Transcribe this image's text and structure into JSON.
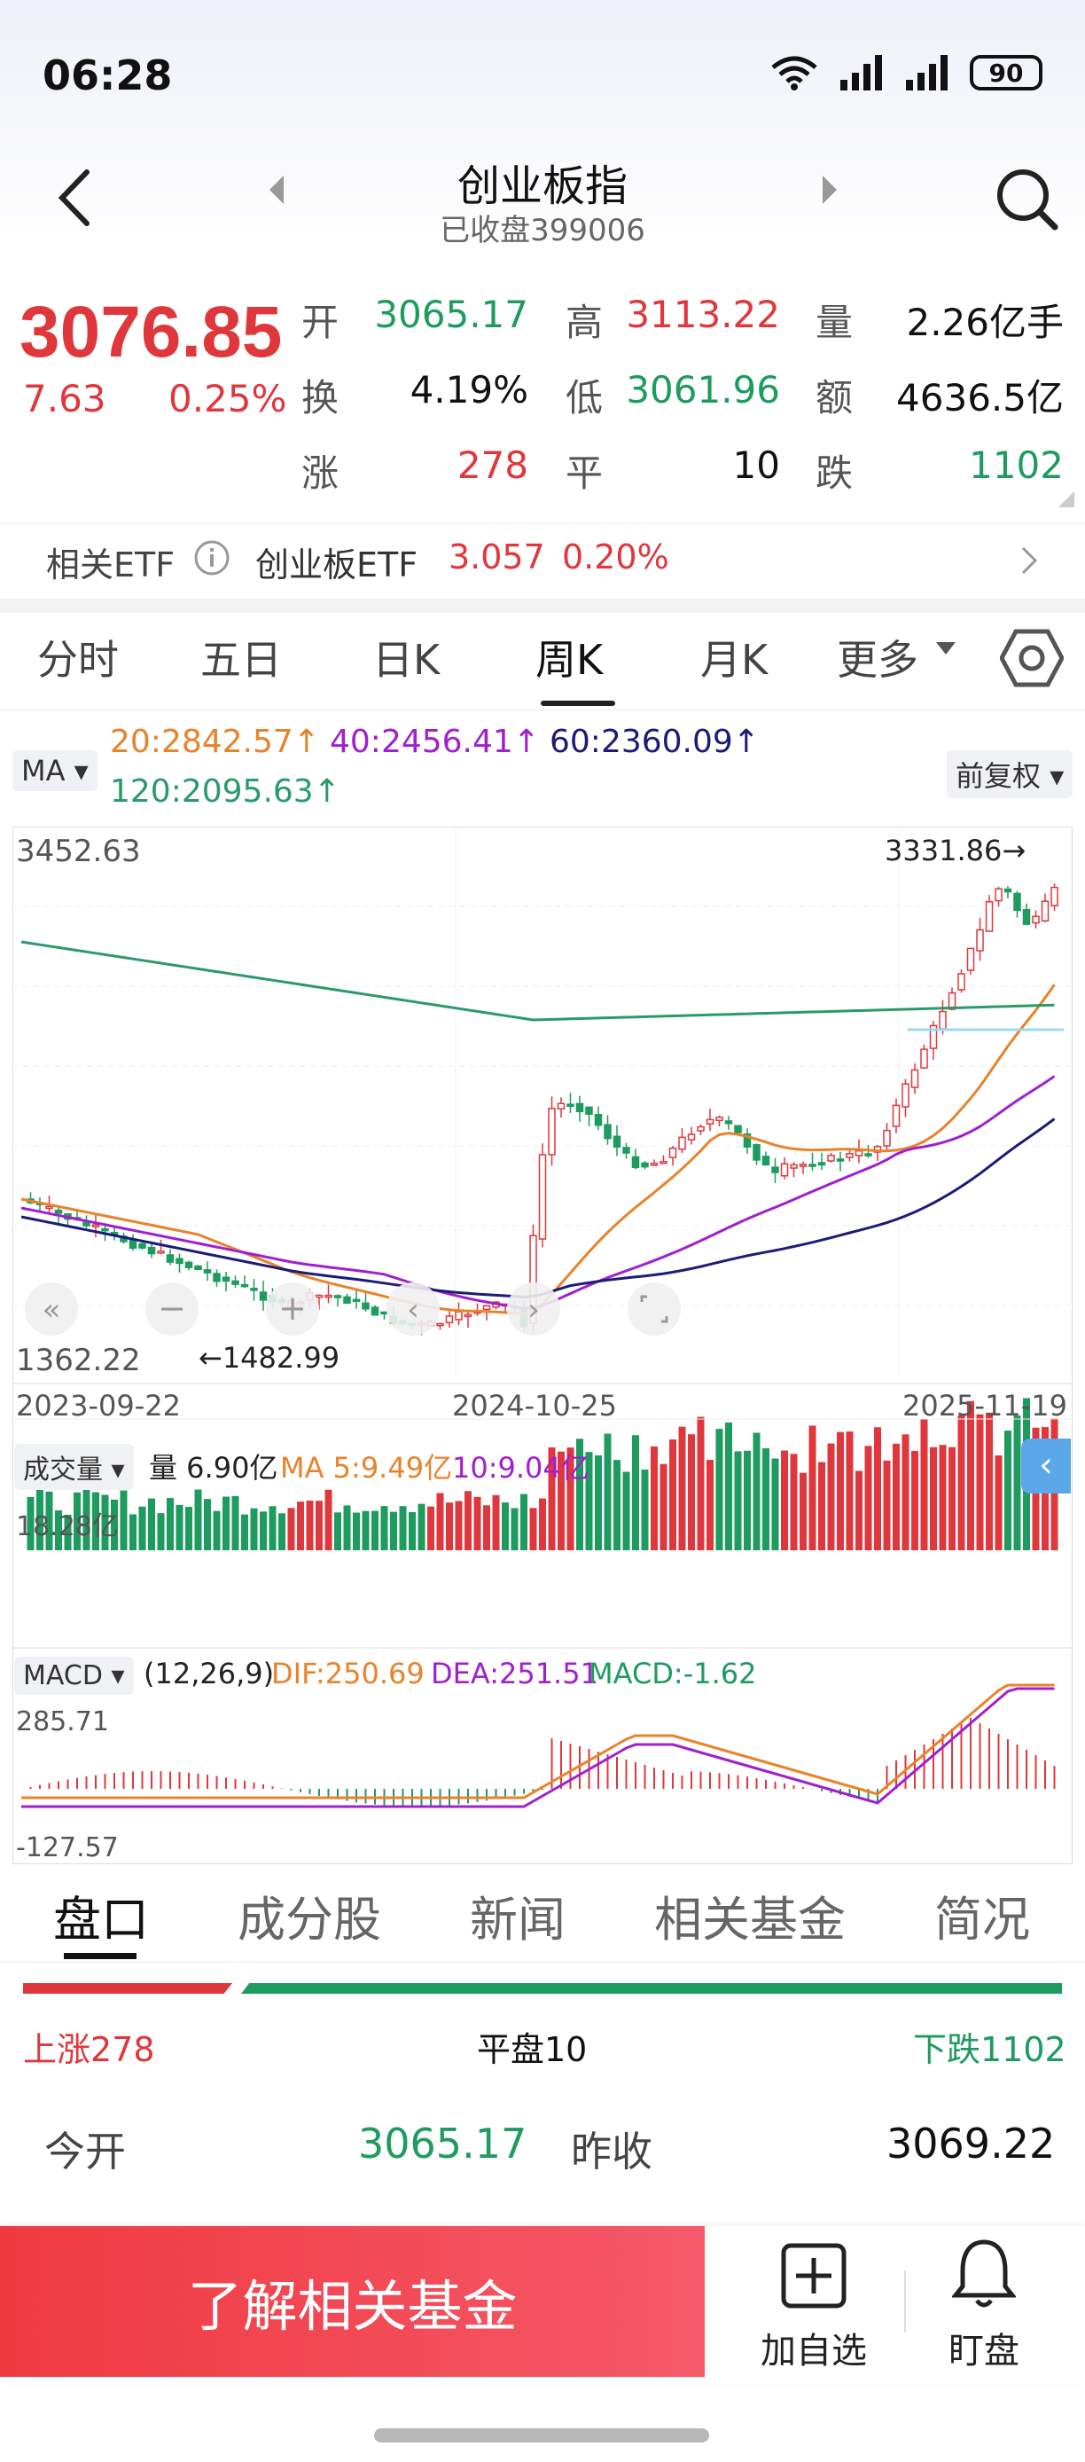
{
  "status_bar": {
    "time": "06:28",
    "battery": "90"
  },
  "nav": {
    "title": "创业板指",
    "subtitle": "已收盘399006"
  },
  "quote": {
    "price": "3076.85",
    "change": "7.63",
    "change_pct": "0.25%",
    "open_label": "开",
    "open": "3065.17",
    "high_label": "高",
    "high": "3113.22",
    "volume_label": "量",
    "volume": "2.26亿手",
    "turnover_label": "换",
    "turnover": "4.19%",
    "low_label": "低",
    "low": "3061.96",
    "amount_label": "额",
    "amount": "4636.5亿",
    "up_label": "涨",
    "up": "278",
    "flat_label": "平",
    "flat": "10",
    "down_label": "跌",
    "down": "1102"
  },
  "etf": {
    "label": "相关ETF",
    "name": "创业板ETF",
    "price": "3.057",
    "pct": "0.20%"
  },
  "period_tabs": [
    "分时",
    "五日",
    "日K",
    "周K",
    "月K",
    "更多"
  ],
  "indicators": {
    "ma_chip": "MA",
    "ma20": "20:2842.57↑",
    "ma40": "40:2456.41↑",
    "ma60": "60:2360.09↑",
    "ma120": "120:2095.63↑",
    "adjust": "前复权"
  },
  "colors": {
    "up": "#e0373c",
    "down": "#1e9b5e",
    "ma20": "#e8832a",
    "ma40": "#a020d0",
    "ma60": "#1c1c78",
    "ma120": "#2a9a6a"
  },
  "chart_labels": {
    "y_max": "3452.63",
    "y_min": "1362.22",
    "high_mark": "3331.86→",
    "low_mark": "←1482.99",
    "date_start": "2023-09-22",
    "date_mid": "2024-10-25",
    "date_end": "2025-11-19"
  },
  "volume_panel": {
    "chip": "成交量",
    "vol": "量 6.90亿",
    "ma5": "MA 5:9.49亿",
    "ma10": "10:9.04亿",
    "y_max": "18.28亿"
  },
  "macd_panel": {
    "chip": "MACD",
    "params": "(12,26,9)",
    "dif": "DIF:250.69",
    "dea": "DEA:251.51",
    "macd": "MACD:-1.62",
    "y_max": "285.71",
    "y_min": "-127.57"
  },
  "bottom_tabs": [
    "盘口",
    "成分股",
    "新闻",
    "相关基金",
    "简况"
  ],
  "breadth": {
    "up": "上涨278",
    "flat": "平盘10",
    "down": "下跌1102"
  },
  "detail": {
    "open_label": "今开",
    "open": "3065.17",
    "prev_label": "昨收",
    "prev": "3069.22"
  },
  "actions": {
    "learn": "了解相关基金",
    "add_watch": "加自选",
    "watch_market": "盯盘"
  }
}
